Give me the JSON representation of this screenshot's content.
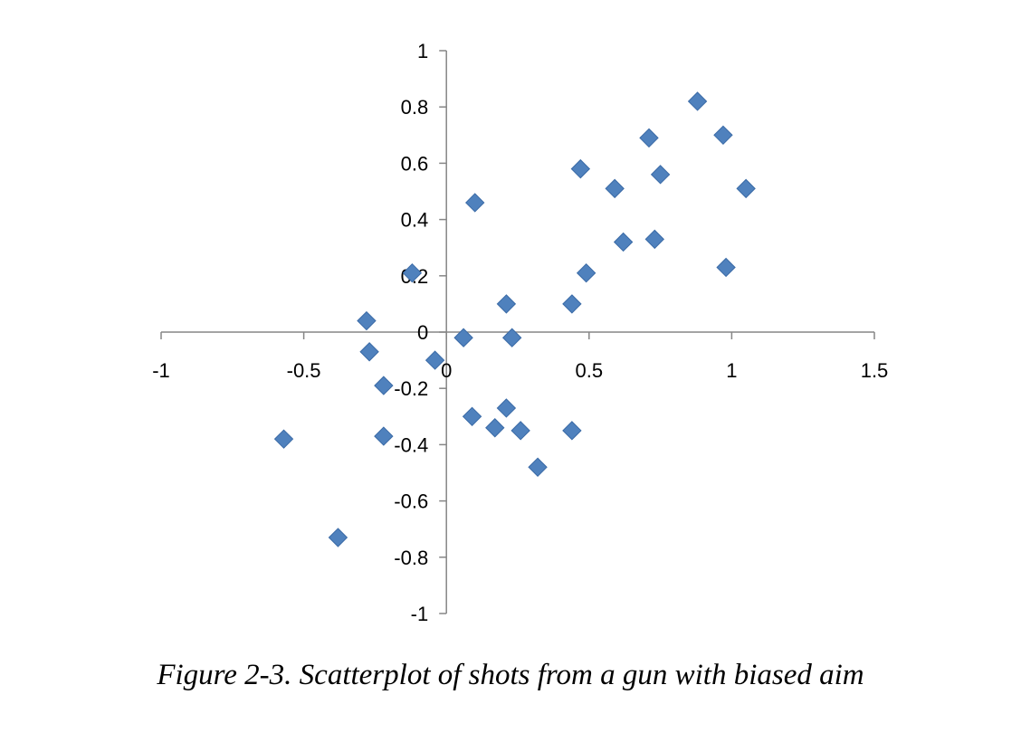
{
  "caption": "Figure 2-3. Scatterplot of shots from a gun with biased aim",
  "colors": {
    "marker": "#4F81BD",
    "marker_stroke": "#3A6AA6",
    "axis": "#868686"
  },
  "chart_data": {
    "type": "scatter",
    "marker": "diamond",
    "grid": false,
    "xlim": [
      -1,
      1.5
    ],
    "ylim": [
      -1,
      1
    ],
    "x_ticks": [
      -1,
      -0.5,
      0,
      0.5,
      1,
      1.5
    ],
    "y_ticks": [
      1,
      0.8,
      0.6,
      0.4,
      0.2,
      0,
      -0.2,
      -0.4,
      -0.6,
      -0.8,
      -1
    ],
    "x_tick_labels": [
      "-1",
      "-0.5",
      "0",
      "0.5",
      "1",
      "1.5"
    ],
    "y_tick_labels": [
      "1",
      "0.8",
      "0.6",
      "0.4",
      "0.2",
      "0",
      "-0.2",
      "-0.4",
      "-0.6",
      "-0.8",
      "-1"
    ],
    "series": [
      {
        "points": [
          [
            0.88,
            0.82
          ],
          [
            0.97,
            0.7
          ],
          [
            0.71,
            0.69
          ],
          [
            0.75,
            0.56
          ],
          [
            0.47,
            0.58
          ],
          [
            0.59,
            0.51
          ],
          [
            1.05,
            0.51
          ],
          [
            0.1,
            0.46
          ],
          [
            0.62,
            0.32
          ],
          [
            0.73,
            0.33
          ],
          [
            0.98,
            0.23
          ],
          [
            0.49,
            0.21
          ],
          [
            -0.12,
            0.21
          ],
          [
            0.21,
            0.1
          ],
          [
            0.44,
            0.1
          ],
          [
            -0.28,
            0.04
          ],
          [
            0.06,
            -0.02
          ],
          [
            0.23,
            -0.02
          ],
          [
            -0.27,
            -0.07
          ],
          [
            -0.04,
            -0.1
          ],
          [
            -0.22,
            -0.19
          ],
          [
            0.21,
            -0.27
          ],
          [
            0.09,
            -0.3
          ],
          [
            0.17,
            -0.34
          ],
          [
            0.26,
            -0.35
          ],
          [
            0.44,
            -0.35
          ],
          [
            -0.22,
            -0.37
          ],
          [
            -0.57,
            -0.38
          ],
          [
            0.32,
            -0.48
          ],
          [
            -0.38,
            -0.73
          ]
        ]
      }
    ]
  }
}
